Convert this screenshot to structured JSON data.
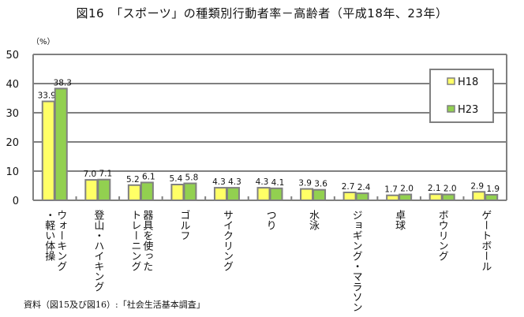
{
  "title": "図16　「スポーツ」の種類別行動者率－高齢者（平成18年、23年）",
  "unit": "（%）",
  "source": "資料（図15及び図16）:「社会生活基本調査」",
  "chart_data": {
    "type": "bar",
    "title": "図16　「スポーツ」の種類別行動者率－高齢者（平成18年、23年）",
    "ylabel": "（%）",
    "ylim": [
      0,
      50
    ],
    "yticks": [
      "0",
      "10",
      "20",
      "30",
      "40",
      "50"
    ],
    "grid": true,
    "legend": "top-right",
    "categories": [
      "ウォーキング\n・軽い体操",
      "登山・ハイキング",
      "器具を使った\nトレーニング",
      "ゴルフ",
      "サイクリング",
      "つり",
      "水泳",
      "ジョギング・マラソン",
      "卓球",
      "ボウリング",
      "ゲートボール"
    ],
    "series": [
      {
        "name": "H18",
        "color": "#FFFF66",
        "values": [
          33.9,
          7.0,
          5.2,
          5.4,
          4.3,
          4.3,
          3.9,
          2.7,
          1.7,
          2.1,
          2.9
        ],
        "labels": [
          "33.9",
          "7.0",
          "5.2",
          "5.4",
          "4.3",
          "4.3",
          "3.9",
          "2.7",
          "1.7",
          "2.1",
          "2.9"
        ]
      },
      {
        "name": "H23",
        "color": "#92D050",
        "values": [
          38.3,
          7.1,
          6.1,
          5.8,
          4.3,
          4.1,
          3.6,
          2.4,
          2.0,
          2.0,
          1.9
        ],
        "labels": [
          "38.3",
          "7.1",
          "6.1",
          "5.8",
          "4.3",
          "4.1",
          "3.6",
          "2.4",
          "2.0",
          "2.0",
          "1.9"
        ]
      }
    ]
  }
}
